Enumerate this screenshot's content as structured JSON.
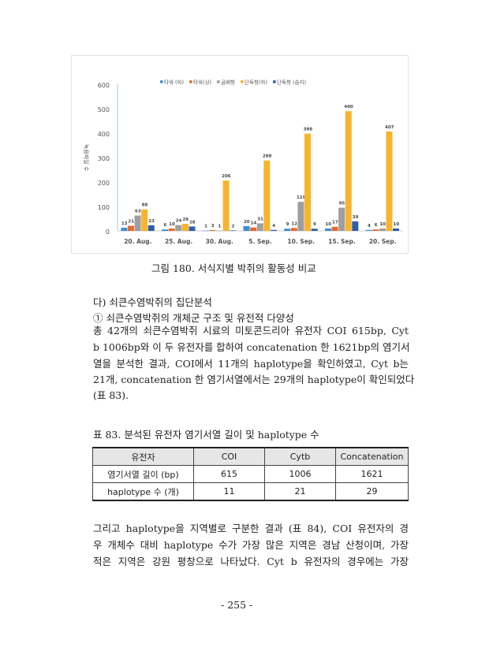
{
  "chart_data": {
    "type": "bar",
    "title": "",
    "ylabel": "녹음파일 수",
    "xlabel": "",
    "ylim": [
      0,
      600
    ],
    "yticks": [
      0,
      100,
      200,
      300,
      400,
      500,
      600
    ],
    "legend_position": "top",
    "categories": [
      "20. Aug.",
      "25. Aug.",
      "30. Aug.",
      "5. Sep.",
      "10. Sep.",
      "15. Sep.",
      "20. Sep."
    ],
    "series": [
      {
        "name": "타워 (하)",
        "color": "#3d8fd6",
        "values": [
          13,
          6,
          1,
          20,
          9,
          10,
          4
        ]
      },
      {
        "name": "타워(상)",
        "color": "#e8692a",
        "values": [
          21,
          10,
          3,
          14,
          12,
          17,
          6
        ]
      },
      {
        "name": "곰배형",
        "color": "#9e9e9e",
        "values": [
          63,
          24,
          1,
          31,
          119,
          95,
          10
        ]
      },
      {
        "name": "단독형(하)",
        "color": "#f8b42c",
        "values": [
          88,
          29,
          206,
          288,
          398,
          490,
          407
        ]
      },
      {
        "name": "단독형 (습지)",
        "color": "#2f5ea8",
        "values": [
          23,
          18,
          2,
          4,
          9,
          39,
          10
        ]
      }
    ]
  },
  "figure_caption": "그림 180. 서식지별 박쥐의 활동성 비교",
  "section_heading": "다) 쇠큰수염박쥐의 집단분석",
  "subsection_heading": "① 쇠큰수염박쥐의 개체군 구조 및 유전적 다양성",
  "paragraph1": [
    "총 42개의 쇠큰수염박쥐 시료의 미토콘드리아 유전자 COI 615bp, Cyt",
    "b 1006bp와 이 두 유전자를 합하여 concatenation 한 1621bp의 염기서",
    "열을 분석한 결과, COI에서 11개의 haplotype을 확인하였고, Cyt b는",
    "21개, concatenation 한 염기서열에서는 29개의 haplotype이 확인되었다",
    "(표 83)."
  ],
  "table_caption": "표 83. 분석된 유전자 염기서열 길이 및 haplotype 수",
  "table": {
    "headers": [
      "유전자",
      "COI",
      "Cytb",
      "Concatenation"
    ],
    "rows": [
      [
        "염기서열 길이 (bp)",
        "615",
        "1006",
        "1621"
      ],
      [
        "haplotype 수 (개)",
        "11",
        "21",
        "29"
      ]
    ]
  },
  "paragraph2": [
    "그리고 haplotype을 지역별로 구분한 결과 (표 84), COI 유전자의 경",
    "우 개체수 대비 haplotype 수가 가장 많은 지역은 경남 산청이며, 가장",
    "적은 지역은 강원 평창으로 나타났다. Cyt b 유전자의 경우에는 가장"
  ],
  "page_number": "- 255 -"
}
